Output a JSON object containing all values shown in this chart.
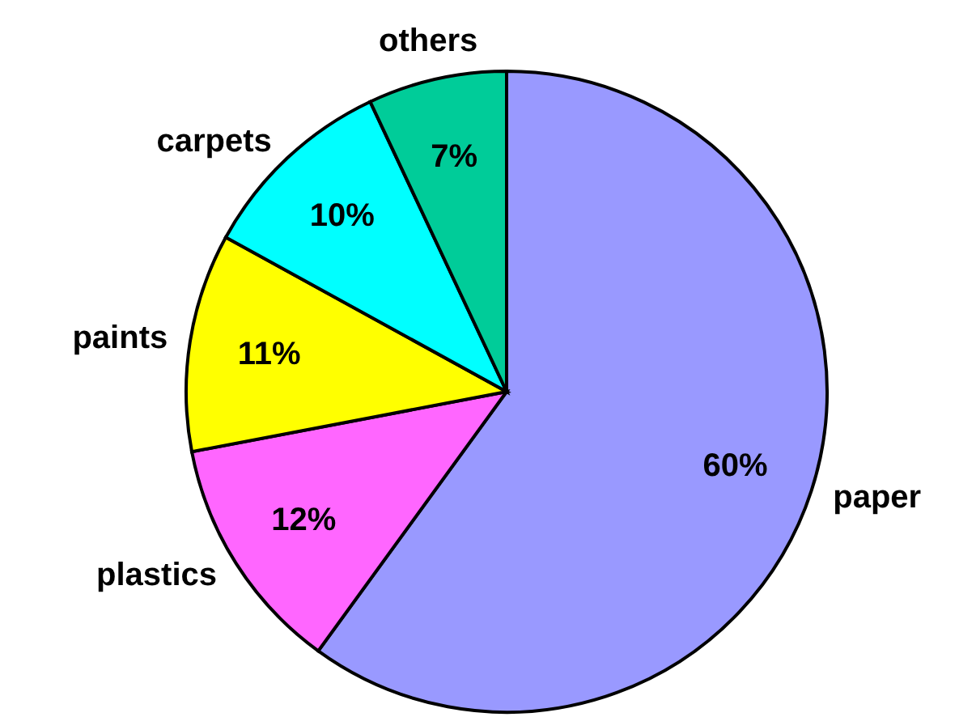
{
  "chart_data": {
    "type": "pie",
    "categories": [
      "paper",
      "plastics",
      "paints",
      "carpets",
      "others"
    ],
    "values": [
      60,
      12,
      11,
      10,
      7
    ],
    "value_labels": [
      "60%",
      "12%",
      "11%",
      "10%",
      "7%"
    ],
    "colors": [
      "#9999ff",
      "#ff66ff",
      "#ffff00",
      "#00ffff",
      "#00cc99"
    ]
  }
}
